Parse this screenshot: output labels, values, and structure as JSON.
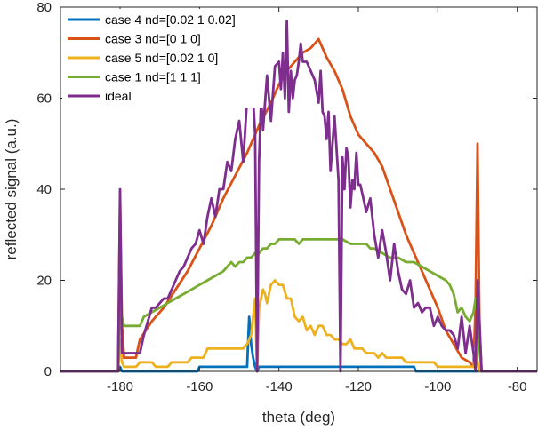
{
  "chart_data": {
    "type": "line",
    "xlabel": "theta (deg)",
    "ylabel": "reflected signal (a.u.)",
    "xlim": [
      -195,
      -75
    ],
    "ylim": [
      0,
      80
    ],
    "xticks": [
      -180,
      -160,
      -140,
      -120,
      -100,
      -80
    ],
    "yticks": [
      0,
      20,
      40,
      60,
      80
    ],
    "grid": false,
    "legend_position": "top-left",
    "series": [
      {
        "name": "case 4 nd=[0.02 1 0.02]",
        "color": "#0072BD",
        "x": [
          -195,
          -180.5,
          -180,
          -179.5,
          -160.5,
          -160,
          -148,
          -147.5,
          -147,
          -146.5,
          -146,
          -145.5,
          -145,
          -144.5,
          -125,
          -124.5,
          -106,
          -105.5,
          -95,
          -94.5,
          -75
        ],
        "y": [
          0,
          0,
          1,
          0,
          0,
          1,
          1,
          12,
          6,
          3,
          1,
          0,
          1,
          1,
          1,
          1,
          1,
          0,
          0,
          0,
          0
        ]
      },
      {
        "name": "case 3 nd=[0 1 0]",
        "color": "#D95319",
        "x": [
          -195,
          -180.5,
          -180,
          -179.5,
          -179,
          -176,
          -175,
          -172,
          -169,
          -166,
          -163,
          -160,
          -157,
          -154,
          -151,
          -148,
          -145,
          -142,
          -140,
          -138,
          -136,
          -134,
          -132,
          -131,
          -130,
          -128,
          -126,
          -124,
          -122,
          -120,
          -118,
          -116,
          -114,
          -112,
          -110,
          -108,
          -106,
          -104,
          -102,
          -100,
          -98,
          -96,
          -94,
          -92,
          -91,
          -90.5,
          -90,
          -89.5,
          -89,
          -75
        ],
        "y": [
          0,
          0,
          38,
          10,
          3,
          3,
          7,
          11,
          14,
          18,
          22,
          27,
          32,
          38,
          43,
          48,
          54,
          59,
          63,
          66,
          68,
          70,
          71,
          72,
          73,
          69,
          66,
          62,
          56,
          52,
          50,
          48,
          45,
          40,
          35,
          30,
          26,
          22,
          18,
          14,
          9,
          6,
          3,
          2,
          1,
          15,
          50,
          10,
          0,
          0
        ]
      },
      {
        "name": "case 5 nd=[0.02 1 0]",
        "color": "#EDB120",
        "x": [
          -195,
          -180.5,
          -180,
          -179.5,
          -179,
          -176,
          -175,
          -172,
          -171,
          -168,
          -167,
          -163,
          -162,
          -159,
          -158,
          -150,
          -149,
          -148,
          -147,
          -146,
          -145.5,
          -145,
          -144,
          -143.5,
          -143,
          -142,
          -141,
          -140,
          -139,
          -138,
          -137,
          -136,
          -135,
          -134,
          -133,
          -132,
          -131,
          -130,
          -129,
          -128,
          -127,
          -126,
          -125,
          -124,
          -123,
          -122,
          -121,
          -120,
          -119,
          -118,
          -117,
          -116,
          -115,
          -114,
          -113,
          -112,
          -111,
          -110,
          -109,
          -108,
          -107,
          -106,
          -105,
          -104,
          -103,
          -102,
          -101,
          -100,
          -99,
          -98,
          -96,
          -94,
          -92,
          -91,
          -90.5,
          -90,
          -89.5,
          -89,
          -75
        ],
        "y": [
          0,
          0,
          7,
          2,
          1,
          1,
          2,
          2,
          1,
          1,
          2,
          2,
          3,
          3,
          5,
          5,
          5,
          6,
          8,
          16,
          0,
          14,
          18,
          17,
          15,
          19,
          20,
          19,
          19,
          16,
          16,
          12,
          11,
          12,
          9,
          10,
          8,
          10,
          10,
          8,
          8,
          7,
          7,
          6,
          6,
          7,
          5,
          5,
          5,
          4,
          4,
          4,
          3,
          4,
          3,
          3,
          3,
          3,
          3,
          2,
          2,
          2,
          2,
          2,
          2,
          2,
          2,
          1,
          1,
          1,
          1,
          1,
          1,
          1,
          5,
          2,
          0,
          0,
          0
        ]
      },
      {
        "name": "case 1 nd=[1 1 1]",
        "color": "#77AC30",
        "x": [
          -195,
          -180.5,
          -180,
          -179.5,
          -179,
          -175,
          -174,
          -172,
          -170,
          -168,
          -166,
          -164,
          -162,
          -160,
          -158,
          -156,
          -154,
          -153,
          -152,
          -151,
          -150,
          -149,
          -148,
          -147,
          -146,
          -145,
          -144,
          -143,
          -142,
          -141,
          -140,
          -139,
          -138,
          -136,
          -135,
          -134,
          -132,
          -130,
          -128,
          -126,
          -125,
          -124,
          -122,
          -120,
          -118,
          -117,
          -116,
          -114,
          -112,
          -110,
          -108,
          -106,
          -104,
          -102,
          -100,
          -98,
          -97,
          -96,
          -95,
          -94,
          -93,
          -92,
          -91,
          -90.5,
          -90,
          -89.5,
          -89,
          -75
        ],
        "y": [
          0,
          0,
          16,
          12,
          10,
          10,
          12,
          13,
          14,
          15,
          16,
          17,
          18,
          19,
          20,
          21,
          22,
          23,
          24,
          23,
          24,
          24,
          25,
          25,
          26,
          26,
          27,
          27,
          28,
          28,
          29,
          29,
          29,
          29,
          28,
          29,
          29,
          29,
          29,
          29,
          29,
          29,
          28,
          28,
          28,
          27,
          27,
          26,
          25,
          25,
          24,
          24,
          23,
          22,
          21,
          20,
          19,
          17,
          13,
          14,
          12,
          11,
          13,
          16,
          12,
          5,
          0,
          0
        ]
      },
      {
        "name": "ideal",
        "color": "#7E2F8E",
        "x": [
          -195,
          -180.5,
          -180,
          -179.5,
          -179,
          -175,
          -174,
          -172,
          -171,
          -170,
          -169,
          -168,
          -167,
          -166,
          -165,
          -164,
          -163,
          -162,
          -161,
          -160,
          -159,
          -158,
          -157,
          -156,
          -155,
          -154,
          -153,
          -152,
          -151,
          -150,
          -149,
          -148,
          -147,
          -146.5,
          -146,
          -145.5,
          -145,
          -144.5,
          -144,
          -143,
          -142,
          -141,
          -140,
          -139.5,
          -139,
          -138.5,
          -138,
          -137.5,
          -137,
          -136.5,
          -136,
          -135.5,
          -135,
          -134.5,
          -134,
          -133,
          -132,
          -131,
          -130,
          -129.5,
          -129,
          -128.5,
          -128,
          -127.5,
          -127,
          -126,
          -125,
          -124.5,
          -124,
          -123.5,
          -123,
          -122.5,
          -122,
          -121.5,
          -121,
          -120.5,
          -120,
          -119.5,
          -119,
          -118,
          -117,
          -116,
          -115,
          -114,
          -113,
          -112,
          -111,
          -110,
          -109,
          -108,
          -107,
          -106,
          -105,
          -104,
          -103,
          -102,
          -101,
          -100,
          -99,
          -98,
          -97,
          -96,
          -95,
          -94,
          -93,
          -92,
          -91,
          -90.5,
          -90,
          -89.5,
          -89,
          -75
        ],
        "y": [
          0,
          0,
          40,
          4,
          4,
          4,
          8,
          14,
          14,
          15,
          16,
          16,
          18,
          20,
          22,
          23,
          25,
          27,
          28,
          31,
          28,
          34,
          38,
          34,
          40,
          40,
          46,
          44,
          51,
          55,
          46,
          60,
          58,
          60,
          52,
          0,
          46,
          60,
          53,
          65,
          55,
          67,
          68,
          62,
          70,
          60,
          77,
          57,
          66,
          60,
          64,
          65,
          68,
          72,
          68,
          68,
          66,
          64,
          59,
          66,
          57,
          56,
          51,
          57,
          44,
          56,
          42,
          0,
          47,
          40,
          49,
          47,
          36,
          42,
          40,
          48,
          41,
          41,
          39,
          35,
          38,
          30,
          25,
          31,
          26,
          20,
          28,
          22,
          18,
          17,
          20,
          14,
          15,
          13,
          14,
          14,
          10,
          12,
          10,
          9,
          9,
          8,
          5,
          12,
          4,
          10,
          4,
          0,
          20,
          11,
          0,
          0
        ]
      }
    ]
  }
}
